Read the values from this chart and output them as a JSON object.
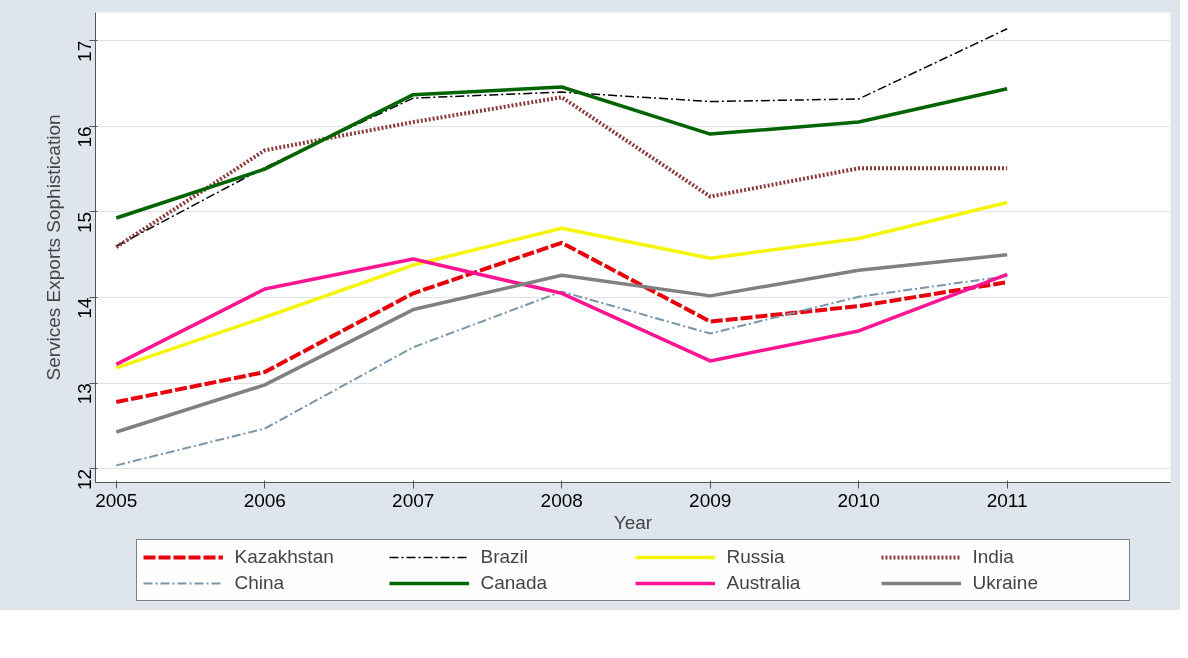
{
  "chart_data": {
    "type": "line",
    "xlabel": "Year",
    "ylabel": "Services Exports Sophistication",
    "x": [
      2005,
      2006,
      2007,
      2008,
      2009,
      2010,
      2011
    ],
    "xlim": [
      2004.86,
      2012.1
    ],
    "xticks": [
      2005,
      2006,
      2007,
      2008,
      2009,
      2010,
      2011
    ],
    "ylim": [
      11.84,
      17.33
    ],
    "yticks": [
      12,
      13,
      14,
      15,
      16,
      17
    ],
    "grid": "y",
    "legend": "bottom",
    "series": [
      {
        "name": "Kazakhstan",
        "color": "#e8000b",
        "line_style": "dashed",
        "values": [
          12.78,
          13.13,
          14.05,
          14.64,
          13.72,
          13.9,
          14.18
        ]
      },
      {
        "name": "Brazil",
        "color": "#000000",
        "line_style": "dashdot",
        "values": [
          14.6,
          15.52,
          16.33,
          16.4,
          16.29,
          16.32,
          17.14
        ]
      },
      {
        "name": "Russia",
        "color": "#f5f50a",
        "line_style": "solid",
        "values": [
          13.18,
          13.77,
          14.38,
          14.81,
          14.46,
          14.69,
          15.11
        ]
      },
      {
        "name": "India",
        "color": "#8b3a3a",
        "line_style": "dotted",
        "values": [
          14.59,
          15.72,
          16.05,
          16.34,
          15.18,
          15.51,
          15.51
        ]
      },
      {
        "name": "China",
        "color": "#7a94a8",
        "line_style": "dashdot",
        "values": [
          12.04,
          12.47,
          13.42,
          14.07,
          13.58,
          14.01,
          14.25
        ]
      },
      {
        "name": "Canada",
        "color": "#006400",
        "line_style": "solid",
        "values": [
          14.93,
          15.5,
          16.37,
          16.46,
          15.91,
          16.05,
          16.44
        ]
      },
      {
        "name": "Australia",
        "color": "#ff1493",
        "line_style": "solid",
        "values": [
          13.22,
          14.1,
          14.45,
          14.05,
          13.26,
          13.61,
          14.27
        ]
      },
      {
        "name": "Ukraine",
        "color": "#808080",
        "line_style": "solid",
        "values": [
          12.43,
          12.98,
          13.86,
          14.26,
          14.02,
          14.32,
          14.5
        ]
      }
    ]
  }
}
